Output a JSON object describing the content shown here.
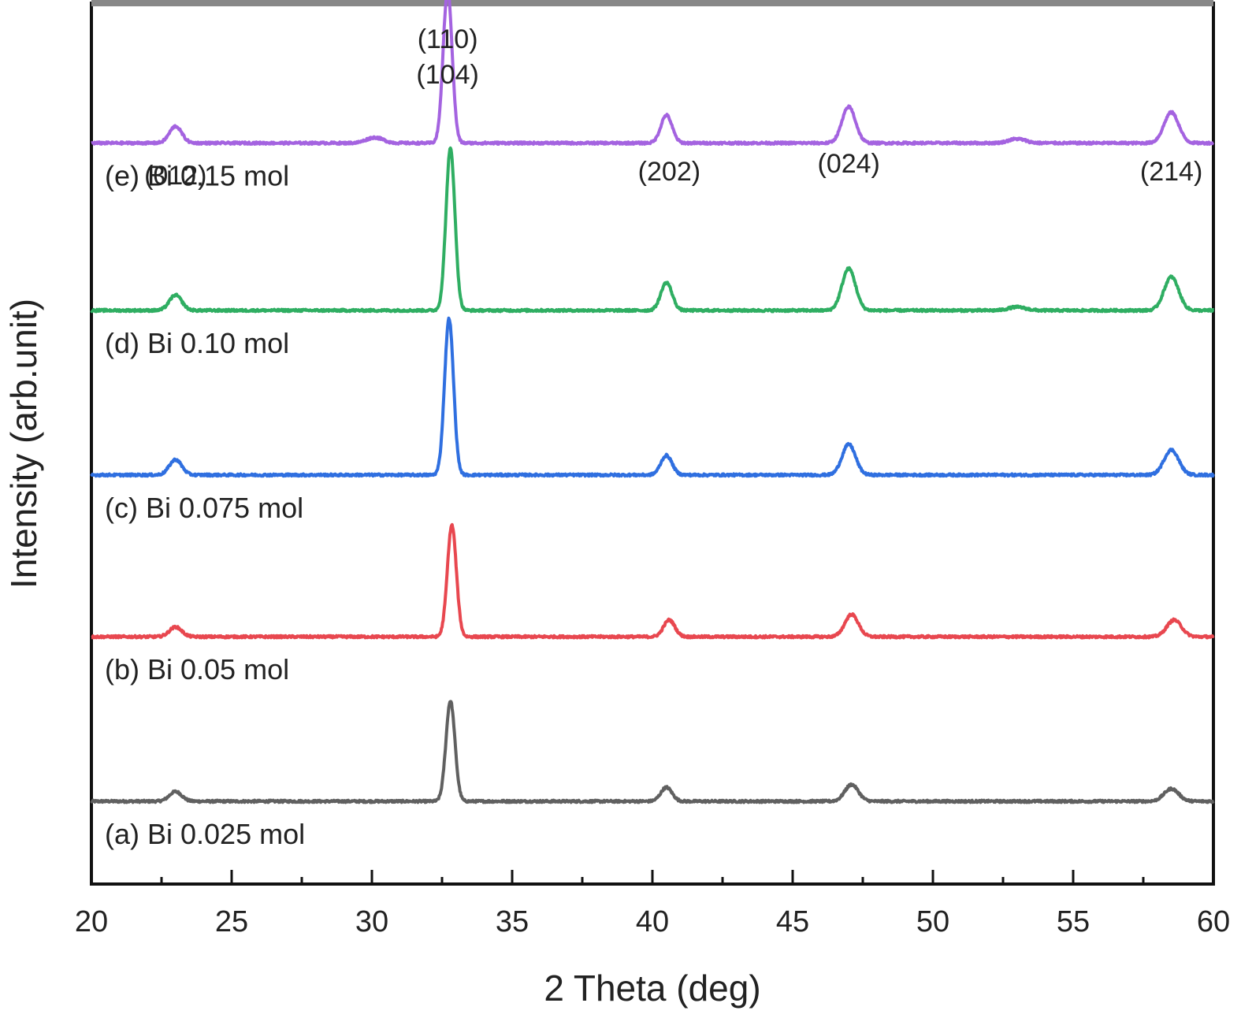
{
  "chart_data": {
    "type": "line",
    "title": "",
    "xlabel": "2 Theta (deg)",
    "ylabel": "Intensity (arb.unit)",
    "xlim": [
      20,
      60
    ],
    "x_ticks": [
      "20",
      "25",
      "30",
      "35",
      "40",
      "45",
      "50",
      "55",
      "60"
    ],
    "y_ticks": [],
    "grid": false,
    "legend": "none; each curve labelled directly below its baseline",
    "series": [
      {
        "name": "(a) Bi 0.025 mol",
        "color": "#606060",
        "baseline": 0.0,
        "noise": 0.004,
        "peaks": [
          {
            "x": 23.0,
            "h": 0.035,
            "w": 0.22
          },
          {
            "x": 32.8,
            "h": 0.36,
            "w": 0.16
          },
          {
            "x": 40.5,
            "h": 0.05,
            "w": 0.2
          },
          {
            "x": 47.1,
            "h": 0.06,
            "w": 0.24
          },
          {
            "x": 58.5,
            "h": 0.045,
            "w": 0.26
          }
        ]
      },
      {
        "name": "(b) Bi 0.05 mol",
        "color": "#e8474f",
        "baseline": 0.59,
        "noise": 0.004,
        "peaks": [
          {
            "x": 23.0,
            "h": 0.035,
            "w": 0.22
          },
          {
            "x": 32.85,
            "h": 0.4,
            "w": 0.16
          },
          {
            "x": 40.6,
            "h": 0.06,
            "w": 0.2
          },
          {
            "x": 47.1,
            "h": 0.08,
            "w": 0.24
          },
          {
            "x": 58.6,
            "h": 0.06,
            "w": 0.26
          }
        ]
      },
      {
        "name": "(c) Bi 0.075 mol",
        "color": "#2f6fe0",
        "baseline": 1.17,
        "noise": 0.004,
        "peaks": [
          {
            "x": 23.0,
            "h": 0.055,
            "w": 0.22
          },
          {
            "x": 32.75,
            "h": 0.56,
            "w": 0.16
          },
          {
            "x": 40.5,
            "h": 0.07,
            "w": 0.2
          },
          {
            "x": 47.0,
            "h": 0.11,
            "w": 0.24
          },
          {
            "x": 58.5,
            "h": 0.09,
            "w": 0.26
          }
        ]
      },
      {
        "name": "(d) Bi 0.10 mol",
        "color": "#2fae62",
        "baseline": 1.76,
        "noise": 0.004,
        "peaks": [
          {
            "x": 23.0,
            "h": 0.055,
            "w": 0.22
          },
          {
            "x": 32.8,
            "h": 0.58,
            "w": 0.16
          },
          {
            "x": 40.5,
            "h": 0.1,
            "w": 0.2
          },
          {
            "x": 47.0,
            "h": 0.15,
            "w": 0.24
          },
          {
            "x": 53.0,
            "h": 0.012,
            "w": 0.3
          },
          {
            "x": 58.5,
            "h": 0.12,
            "w": 0.26
          }
        ]
      },
      {
        "name": "(e) Bi 0.15 mol",
        "color": "#a463e0",
        "baseline": 2.36,
        "noise": 0.004,
        "peaks": [
          {
            "x": 23.0,
            "h": 0.06,
            "w": 0.22
          },
          {
            "x": 30.1,
            "h": 0.02,
            "w": 0.3
          },
          {
            "x": 32.7,
            "h": 0.55,
            "w": 0.16
          },
          {
            "x": 40.5,
            "h": 0.1,
            "w": 0.2
          },
          {
            "x": 47.0,
            "h": 0.13,
            "w": 0.24
          },
          {
            "x": 53.0,
            "h": 0.015,
            "w": 0.3
          },
          {
            "x": 58.5,
            "h": 0.11,
            "w": 0.26
          }
        ]
      }
    ],
    "annotations": [
      {
        "text": "(012)",
        "x": 23.0
      },
      {
        "text": "(110)",
        "x": 32.7
      },
      {
        "text": "(104)",
        "x": 32.7
      },
      {
        "text": "(202)",
        "x": 40.6
      },
      {
        "text": "(024)",
        "x": 47.0
      },
      {
        "text": "(214)",
        "x": 58.5
      }
    ]
  }
}
